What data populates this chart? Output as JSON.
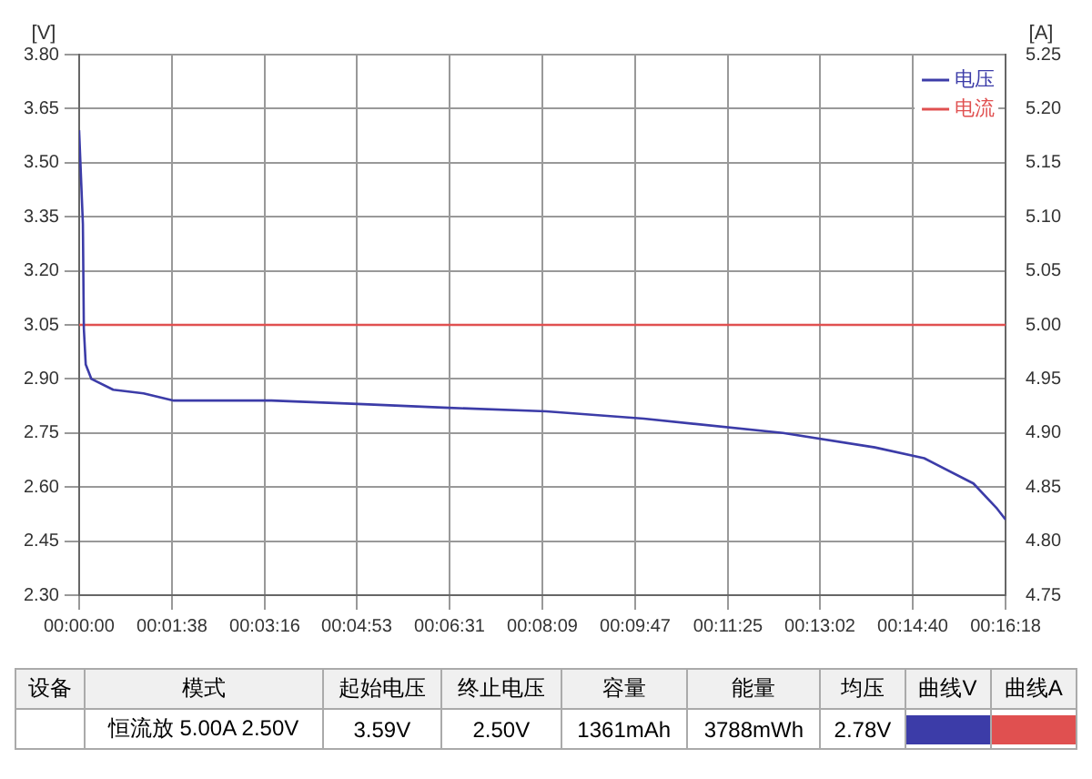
{
  "chart_data": {
    "type": "line",
    "ylabel": "[V]",
    "y2label": "[A]",
    "xlim": [
      0,
      978
    ],
    "xticks": [
      {
        "value": 0,
        "label": "00:00:00"
      },
      {
        "value": 98,
        "label": "00:01:38"
      },
      {
        "value": 196,
        "label": "00:03:16"
      },
      {
        "value": 293,
        "label": "00:04:53"
      },
      {
        "value": 391,
        "label": "00:06:31"
      },
      {
        "value": 489,
        "label": "00:08:09"
      },
      {
        "value": 587,
        "label": "00:09:47"
      },
      {
        "value": 685,
        "label": "00:11:25"
      },
      {
        "value": 782,
        "label": "00:13:02"
      },
      {
        "value": 880,
        "label": "00:14:40"
      },
      {
        "value": 978,
        "label": "00:16:18"
      }
    ],
    "ylim": [
      2.3,
      3.8
    ],
    "yticks": [
      {
        "value": 2.3,
        "label": "2.30"
      },
      {
        "value": 2.45,
        "label": "2.45"
      },
      {
        "value": 2.6,
        "label": "2.60"
      },
      {
        "value": 2.75,
        "label": "2.75"
      },
      {
        "value": 2.9,
        "label": "2.90"
      },
      {
        "value": 3.05,
        "label": "3.05"
      },
      {
        "value": 3.2,
        "label": "3.20"
      },
      {
        "value": 3.35,
        "label": "3.35"
      },
      {
        "value": 3.5,
        "label": "3.50"
      },
      {
        "value": 3.65,
        "label": "3.65"
      },
      {
        "value": 3.8,
        "label": "3.80"
      }
    ],
    "y2lim": [
      4.75,
      5.25
    ],
    "y2ticks": [
      {
        "value": 4.75,
        "label": "4.75"
      },
      {
        "value": 4.8,
        "label": "4.80"
      },
      {
        "value": 4.85,
        "label": "4.85"
      },
      {
        "value": 4.9,
        "label": "4.90"
      },
      {
        "value": 4.95,
        "label": "4.95"
      },
      {
        "value": 5,
        "label": "5.00"
      },
      {
        "value": 5.05,
        "label": "5.05"
      },
      {
        "value": 5.1,
        "label": "5.10"
      },
      {
        "value": 5.15,
        "label": "5.15"
      },
      {
        "value": 5.2,
        "label": "5.20"
      },
      {
        "value": 5.25,
        "label": "5.25"
      }
    ],
    "grid": true,
    "legend": "top right",
    "marker": "none",
    "line_style": "solid",
    "series": [
      {
        "name": "电压",
        "color": "#3c3ca8",
        "x": [
          0,
          4,
          5,
          7,
          13,
          36,
          68,
          100,
          203,
          300,
          390,
          493,
          596,
          743,
          840,
          892,
          944,
          969,
          978
        ],
        "values": [
          3.59,
          3.33,
          3.04,
          2.94,
          2.9,
          2.87,
          2.86,
          2.84,
          2.84,
          2.83,
          2.82,
          2.81,
          2.79,
          2.75,
          2.71,
          2.68,
          2.61,
          2.54,
          2.51
        ]
      },
      {
        "name": "电流",
        "color": "#e05050",
        "axis": "y2",
        "x": [
          0,
          978
        ],
        "values": [
          5,
          5
        ]
      }
    ],
    "annotations": [
      "设备",
      "模式",
      "起始电压",
      "终止电压",
      "容量",
      "能量",
      "均压",
      "曲线V",
      "曲线A",
      "恒流放 5.00A 2.50V",
      "3.59V",
      "2.50V",
      "1361mAh",
      "3788mWh",
      "2.78V"
    ]
  }
}
